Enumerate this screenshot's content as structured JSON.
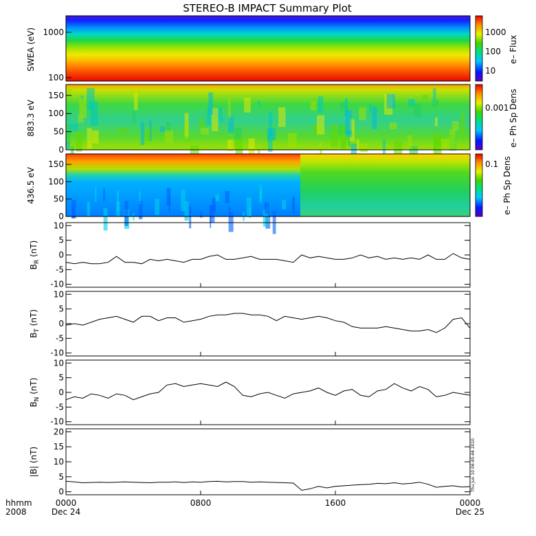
{
  "title": "STEREO-B IMPACT Summary Plot",
  "timestamp_note": "Thu Jun 10 06:45:44 2010",
  "time_axis": {
    "label_line1": "hhmm",
    "label_line2": "2008",
    "ticks": [
      {
        "hour": 0,
        "label": "0000",
        "sub": "Dec 24"
      },
      {
        "hour": 8,
        "label": "0800",
        "sub": ""
      },
      {
        "hour": 16,
        "label": "1600",
        "sub": ""
      },
      {
        "hour": 24,
        "label": "0000",
        "sub": "Dec 25"
      }
    ],
    "range_hours": [
      0,
      24
    ]
  },
  "chart_data": [
    {
      "type": "heatmap",
      "ylabel": "SWEA (eV)",
      "yscale": "log",
      "ylim": [
        100,
        2000
      ],
      "yticks": [
        "1000",
        "100"
      ],
      "colorbar_label": "e– Flux",
      "colorbar_ticks": [
        "1000",
        "100",
        "10"
      ],
      "description_rows": "flux decreases with energy; red at 100 eV, blue near 2000 eV"
    },
    {
      "type": "heatmap",
      "ylabel": "883.3 eV",
      "ylim": [
        0,
        180
      ],
      "yticks": [
        "150",
        "100",
        "50",
        "0"
      ],
      "colorbar_label": "e– Ph Sp Dens",
      "colorbar_ticks": [
        "0.001"
      ]
    },
    {
      "type": "heatmap",
      "ylabel": "436.5 eV",
      "ylim": [
        0,
        180
      ],
      "yticks": [
        "150",
        "100",
        "50",
        "0"
      ],
      "colorbar_label": "e– Ph Sp Dens",
      "colorbar_ticks": [
        "0.1"
      ],
      "change_hour": 13.7
    },
    {
      "type": "line",
      "ylabel": "B_R (nT)",
      "ylim": [
        -11,
        11
      ],
      "yticks": [
        "10",
        "5",
        "0",
        "-5",
        "-10"
      ],
      "x": [
        0,
        0.5,
        1,
        1.5,
        2,
        2.5,
        3,
        3.5,
        4,
        4.5,
        5,
        5.5,
        6,
        6.5,
        7,
        7.5,
        8,
        8.5,
        9,
        9.5,
        10,
        10.5,
        11,
        11.5,
        12,
        12.5,
        13,
        13.5,
        14,
        14.5,
        15,
        15.5,
        16,
        16.5,
        17,
        17.5,
        18,
        18.5,
        19,
        19.5,
        20,
        20.5,
        21,
        21.5,
        22,
        22.5,
        23,
        23.5,
        24
      ],
      "y": [
        -2.5,
        -3,
        -2.5,
        -3,
        -3,
        -2.5,
        -0.5,
        -2.5,
        -2.5,
        -3,
        -1.5,
        -2,
        -1.5,
        -2,
        -2.5,
        -1.5,
        -1.5,
        -0.5,
        0,
        -1.5,
        -1.5,
        -1,
        -0.5,
        -1.5,
        -1.5,
        -1.5,
        -2,
        -2.5,
        0,
        -1,
        -0.5,
        -1,
        -1.5,
        -1.5,
        -1,
        0,
        -1,
        -0.5,
        -1.5,
        -1,
        -1.5,
        -1,
        -1.5,
        0,
        -1.5,
        -1.5,
        0.5,
        -1,
        -1.5
      ]
    },
    {
      "type": "line",
      "ylabel": "B_T (nT)",
      "ylim": [
        -11,
        11
      ],
      "yticks": [
        "10",
        "5",
        "0",
        "-5",
        "-10"
      ],
      "x": [
        0,
        0.5,
        1,
        1.5,
        2,
        2.5,
        3,
        3.5,
        4,
        4.5,
        5,
        5.5,
        6,
        6.5,
        7,
        7.5,
        8,
        8.5,
        9,
        9.5,
        10,
        10.5,
        11,
        11.5,
        12,
        12.5,
        13,
        13.5,
        14,
        14.5,
        15,
        15.5,
        16,
        16.5,
        17,
        17.5,
        18,
        18.5,
        19,
        19.5,
        20,
        20.5,
        21,
        21.5,
        22,
        22.5,
        23,
        23.5,
        24
      ],
      "y": [
        -0.5,
        0,
        -0.5,
        0.5,
        1.5,
        2,
        2.5,
        1.5,
        0.5,
        2.5,
        2.5,
        1,
        2,
        2,
        0.5,
        1,
        1.5,
        2.5,
        3,
        3,
        3.5,
        3.5,
        3,
        3,
        2.5,
        1,
        2.5,
        2,
        1.5,
        2,
        2.5,
        2,
        1,
        0.5,
        -1,
        -1.5,
        -1.5,
        -1.5,
        -1,
        -1.5,
        -2,
        -2.5,
        -2.5,
        -2,
        -3,
        -1.5,
        1.5,
        2,
        -1.5
      ]
    },
    {
      "type": "line",
      "ylabel": "B_N (nT)",
      "ylim": [
        -11,
        11
      ],
      "yticks": [
        "10",
        "5",
        "0",
        "-5",
        "-10"
      ],
      "x": [
        0,
        0.5,
        1,
        1.5,
        2,
        2.5,
        3,
        3.5,
        4,
        4.5,
        5,
        5.5,
        6,
        6.5,
        7,
        7.5,
        8,
        8.5,
        9,
        9.5,
        10,
        10.5,
        11,
        11.5,
        12,
        12.5,
        13,
        13.5,
        14,
        14.5,
        15,
        15.5,
        16,
        16.5,
        17,
        17.5,
        18,
        18.5,
        19,
        19.5,
        20,
        20.5,
        21,
        21.5,
        22,
        22.5,
        23,
        23.5,
        24
      ],
      "y": [
        -2.5,
        -1.5,
        -2,
        -0.5,
        -1,
        -2,
        -0.5,
        -1,
        -2.5,
        -1.5,
        -0.5,
        0,
        2.5,
        3,
        2,
        2.5,
        3,
        2.5,
        2,
        3.5,
        2,
        -1,
        -1.5,
        -0.5,
        0,
        -1,
        -2,
        -0.5,
        0,
        0.5,
        1.5,
        0,
        -1,
        0.5,
        1,
        -1,
        -1.5,
        0.5,
        1,
        3,
        1.5,
        0.5,
        2,
        1,
        -1.5,
        -1,
        0,
        -0.5,
        -1
      ]
    },
    {
      "type": "line",
      "ylabel": "|B| (nT)",
      "ylim": [
        -1,
        21
      ],
      "yticks": [
        "20",
        "15",
        "10",
        "5",
        "0"
      ],
      "x": [
        0,
        0.5,
        1,
        1.5,
        2,
        2.5,
        3,
        3.5,
        4,
        4.5,
        5,
        5.5,
        6,
        6.5,
        7,
        7.5,
        8,
        8.5,
        9,
        9.5,
        10,
        10.5,
        11,
        11.5,
        12,
        12.5,
        13,
        13.5,
        14,
        14.5,
        15,
        15.5,
        16,
        16.5,
        17,
        17.5,
        18,
        18.5,
        19,
        19.5,
        20,
        20.5,
        21,
        21.5,
        22,
        22.5,
        23,
        23.5,
        24
      ],
      "y": [
        3.5,
        3.3,
        3,
        3.1,
        3.2,
        3.1,
        3.2,
        3.3,
        3.2,
        3.1,
        3,
        3.2,
        3.2,
        3.3,
        3.1,
        3.3,
        3.2,
        3.4,
        3.5,
        3.3,
        3.4,
        3.4,
        3.2,
        3.3,
        3.2,
        3.1,
        3,
        2.9,
        0.5,
        1,
        1.8,
        1.3,
        1.8,
        2,
        2.2,
        2.4,
        2.5,
        2.8,
        2.7,
        3,
        2.6,
        2.8,
        3.2,
        2.5,
        1.5,
        1.8,
        2,
        1.6,
        1.7
      ]
    }
  ]
}
